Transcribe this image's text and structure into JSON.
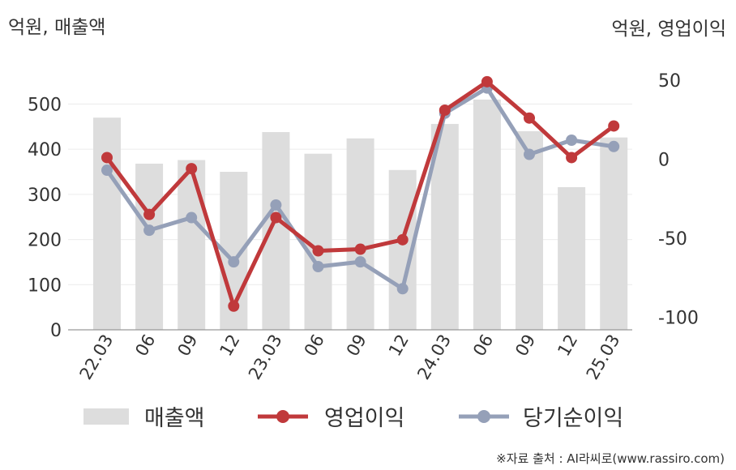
{
  "chart_data": {
    "type": "bar",
    "title": "",
    "left_axis_unit": "억원, 매출액",
    "right_axis_unit": "억원, 영업이익",
    "categories": [
      "22.03",
      "06",
      "09",
      "12",
      "23.03",
      "06",
      "09",
      "12",
      "24.03",
      "06",
      "09",
      "12",
      "25.03"
    ],
    "left_ylim": [
      0,
      560
    ],
    "left_yticks": [
      0,
      100,
      200,
      300,
      400,
      500
    ],
    "right_ylim": [
      -108,
      52
    ],
    "right_yticks": [
      -100,
      -50,
      0,
      50
    ],
    "series": [
      {
        "name": "매출액",
        "kind": "bar",
        "axis": "left",
        "color": "#dddddd",
        "values": [
          470,
          368,
          376,
          350,
          438,
          390,
          424,
          354,
          456,
          510,
          440,
          316,
          426
        ]
      },
      {
        "name": "영업이익",
        "kind": "line",
        "axis": "right",
        "color": "#c0393b",
        "values": [
          1,
          -35,
          -6,
          -93,
          -37,
          -58,
          -57,
          -51,
          31,
          49,
          26,
          1,
          21
        ]
      },
      {
        "name": "당기순이익",
        "kind": "line",
        "axis": "right",
        "color": "#95a0b8",
        "values": [
          -7,
          -45,
          -37,
          -65,
          -29,
          -68,
          -65,
          -82,
          29,
          45,
          3,
          12,
          8
        ]
      }
    ],
    "grid": true,
    "legend_position": "bottom"
  },
  "source": "※자료 출처 : AI라씨로(www.rassiro.com)"
}
